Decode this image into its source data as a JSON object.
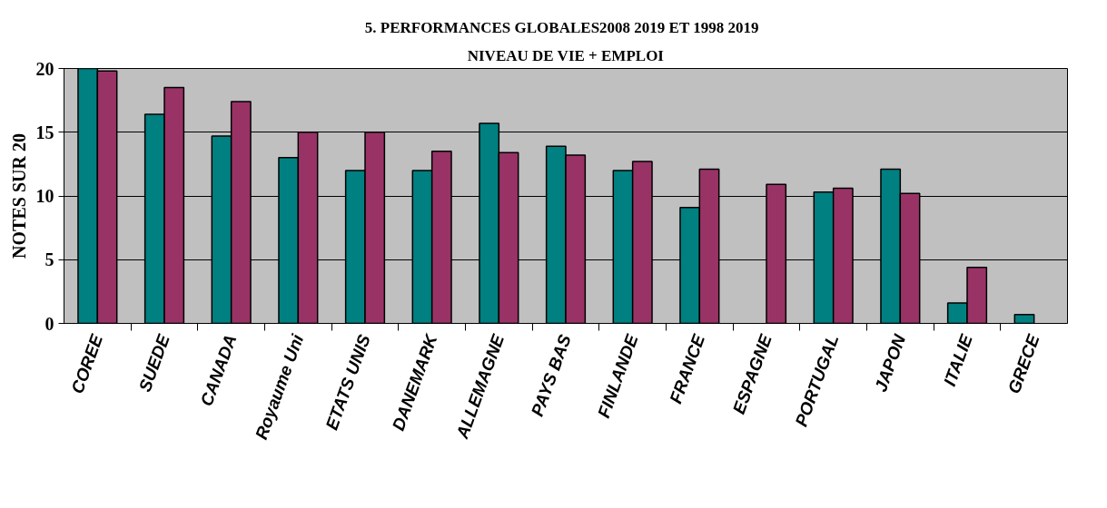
{
  "chart_data": {
    "type": "bar",
    "title": "5. PERFORMANCES   GLOBALES2008 2019 ET 1998 2019",
    "subtitle": "NIVEAU DE VIE + EMPLOI",
    "ylabel": "NOTES SUR 20",
    "categories": [
      "COREE",
      "SUEDE",
      "CANADA",
      "Royaume Uni",
      "ETATS UNIS",
      "DANEMARK",
      "ALLEMAGNE",
      "PAYS BAS",
      "FINLANDE",
      "FRANCE",
      "ESPAGNE",
      "PORTUGAL",
      "JAPON",
      "ITALIE",
      "GRECE"
    ],
    "series": [
      {
        "color": "#008080",
        "values": [
          20,
          16.4,
          14.7,
          13.0,
          12.0,
          12.0,
          15.7,
          13.9,
          12.0,
          9.1,
          null,
          10.3,
          12.1,
          1.6,
          0.7
        ]
      },
      {
        "color": "#993366",
        "values": [
          19.8,
          18.5,
          17.4,
          15.0,
          15.0,
          13.5,
          13.4,
          13.2,
          12.7,
          12.1,
          10.9,
          10.6,
          10.2,
          4.4,
          null
        ]
      }
    ],
    "ylim": [
      0,
      20
    ],
    "yticks": [
      0,
      5,
      10,
      15,
      20
    ],
    "grid": "y"
  }
}
